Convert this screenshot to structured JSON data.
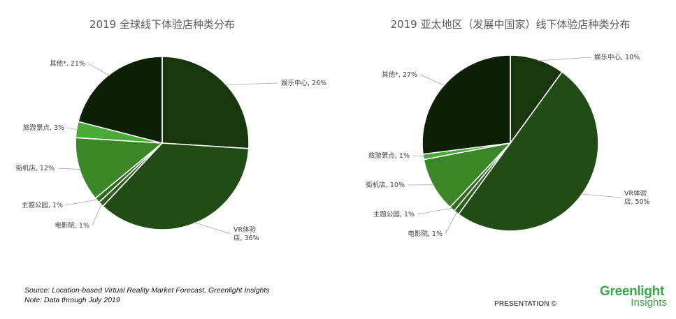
{
  "chart_data": [
    {
      "type": "pie",
      "title": "2019 全球线下体验店种类分布",
      "slices": [
        {
          "label": "娱乐中心, 26%",
          "value": 26,
          "color": "#18360b"
        },
        {
          "label": "VR体验|店, 36%",
          "value": 36,
          "color": "#214c15"
        },
        {
          "label": "电影院, 1%",
          "value": 1,
          "color": "#2b5e1c"
        },
        {
          "label": "主题公园, 1%",
          "value": 1,
          "color": "#306a20"
        },
        {
          "label": "街机店, 12%",
          "value": 12,
          "color": "#3b8728"
        },
        {
          "label": "旅游景点, 3%",
          "value": 3,
          "color": "#4aaa39"
        },
        {
          "label": "其他*, 21%",
          "value": 21,
          "color": "#0c2005"
        }
      ]
    },
    {
      "type": "pie",
      "title": "2019 亚太地区（发展中国家）线下体验店种类分布",
      "slices": [
        {
          "label": "娱乐中心, 10%",
          "value": 10,
          "color": "#18360b"
        },
        {
          "label": "VR体验|店, 50%",
          "value": 50,
          "color": "#214c15"
        },
        {
          "label": "电影院, 1%",
          "value": 1,
          "color": "#2b5e1c"
        },
        {
          "label": "主题公园, 1%",
          "value": 1,
          "color": "#306a20"
        },
        {
          "label": "街机店, 10%",
          "value": 10,
          "color": "#3b8728"
        },
        {
          "label": "旅游景点, 1%",
          "value": 1,
          "color": "#4aaa39"
        },
        {
          "label": "其他*, 27%",
          "value": 27,
          "color": "#0c2005"
        }
      ]
    }
  ],
  "footer": {
    "source": "Source: Location-based Virtual Reality Market Forecast, Greenlight Insights",
    "note": "Note: Data through July 2019",
    "presentation": "PRESENTATION ©"
  },
  "logo": {
    "line1": "Greenlight",
    "line2": "Insights",
    "color": "#3aa64a"
  }
}
